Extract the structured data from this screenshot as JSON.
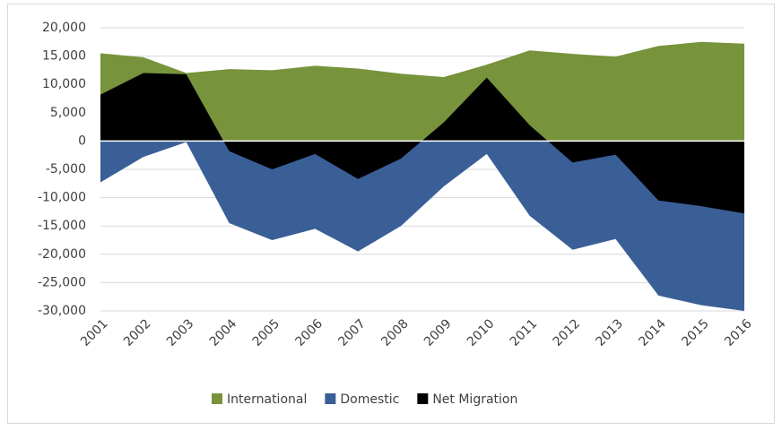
{
  "chart_data": {
    "type": "area",
    "categories": [
      "2001",
      "2002",
      "2003",
      "2004",
      "2005",
      "2006",
      "2007",
      "2008",
      "2009",
      "2010",
      "2011",
      "2012",
      "2013",
      "2014",
      "2015",
      "2016"
    ],
    "series": [
      {
        "name": "International",
        "color": "#77933c",
        "values": [
          15500,
          14800,
          12000,
          12700,
          12500,
          13300,
          12800,
          11900,
          11300,
          13500,
          16000,
          15400,
          14900,
          16800,
          17500,
          17200
        ]
      },
      {
        "name": "Domestic",
        "color": "#3a5f97",
        "values": [
          -7300,
          -2800,
          -200,
          -14500,
          -17500,
          -15500,
          -19500,
          -15000,
          -8000,
          -2300,
          -13200,
          -19200,
          -17300,
          -27300,
          -29000,
          -30000
        ]
      },
      {
        "name": "Net Migration",
        "color": "#000000",
        "values": [
          8200,
          12000,
          11800,
          -1800,
          -5000,
          -2300,
          -6700,
          -3100,
          3300,
          11200,
          2800,
          -3800,
          -2400,
          -10500,
          -11500,
          -12800
        ]
      }
    ],
    "ylim": [
      -30000,
      20000
    ],
    "yticks": [
      {
        "value": -30000,
        "label": "-30,000"
      },
      {
        "value": -25000,
        "label": "-25,000"
      },
      {
        "value": -20000,
        "label": "-20,000"
      },
      {
        "value": -15000,
        "label": "-15,000"
      },
      {
        "value": -10000,
        "label": "-10,000"
      },
      {
        "value": -5000,
        "label": "-5,000"
      },
      0,
      {
        "value": 5000,
        "label": "5,000"
      },
      {
        "value": 10000,
        "label": "10,000"
      },
      {
        "value": 15000,
        "label": "15,000"
      },
      {
        "value": 20000,
        "label": "20,000"
      }
    ],
    "grid": true,
    "legend": "bottom"
  }
}
